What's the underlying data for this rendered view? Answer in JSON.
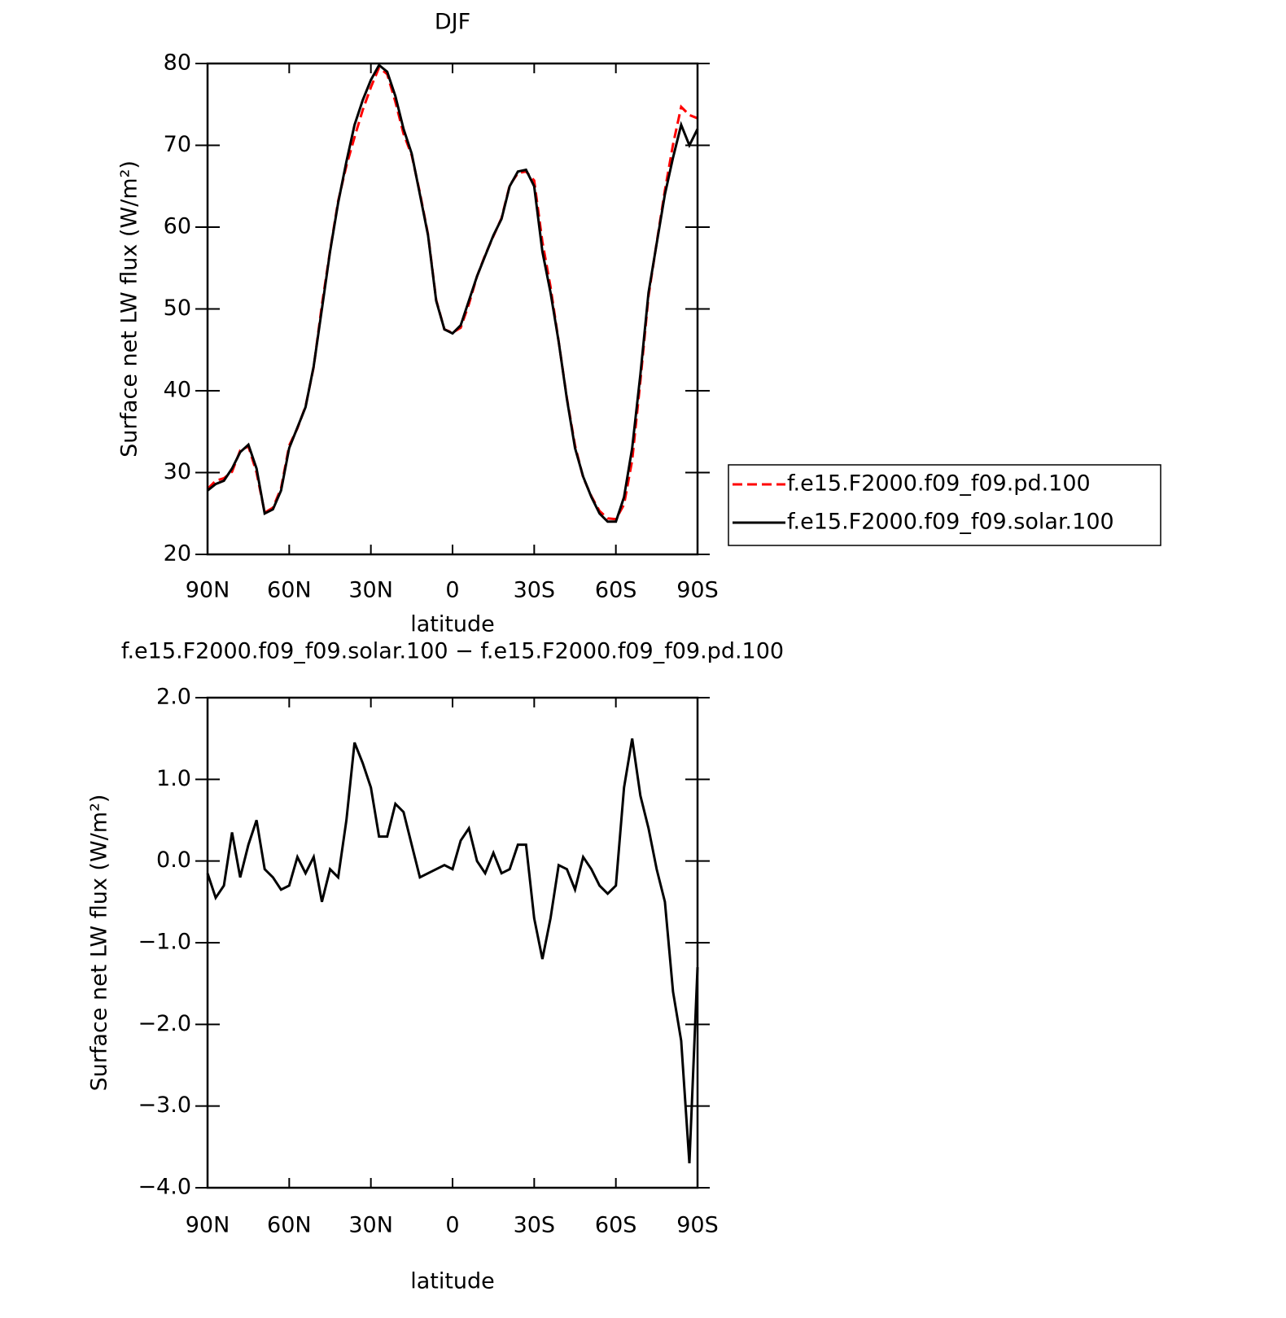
{
  "chart_data": [
    {
      "type": "line",
      "title": "DJF",
      "xlabel": "latitude",
      "ylabel": "Surface net LW flux (W/m²)",
      "x": [
        90,
        87,
        84,
        81,
        78,
        75,
        72,
        69,
        66,
        63,
        60,
        57,
        54,
        51,
        48,
        45,
        42,
        39,
        36,
        33,
        30,
        27,
        24,
        21,
        18,
        15,
        12,
        9,
        6,
        3,
        0,
        -3,
        -6,
        -9,
        -12,
        -15,
        -18,
        -21,
        -24,
        -27,
        -30,
        -33,
        -36,
        -39,
        -42,
        -45,
        -48,
        -51,
        -54,
        -57,
        -60,
        -63,
        -66,
        -69,
        -72,
        -75,
        -78,
        -81,
        -84,
        -87,
        -90
      ],
      "series": [
        {
          "name": "f.e15.F2000.f09_f09.pd.100",
          "color": "#ff0000",
          "dash": "dashed",
          "values": [
            28.0,
            29.0,
            29.3,
            30.1,
            32.7,
            33.2,
            30.0,
            25.1,
            25.7,
            28.1,
            33.3,
            35.4,
            38.1,
            42.9,
            50.5,
            57.1,
            63.2,
            67.5,
            71.0,
            74.3,
            77.1,
            79.5,
            78.7,
            75.3,
            71.4,
            68.8,
            64.2,
            59.1,
            51.1,
            47.5,
            47.1,
            47.7,
            50.6,
            54.0,
            56.6,
            58.9,
            61.1,
            65.1,
            66.6,
            66.8,
            65.7,
            58.2,
            52.7,
            46.0,
            39.1,
            33.3,
            29.4,
            27.1,
            25.3,
            24.4,
            24.3,
            26.1,
            31.5,
            41.2,
            51.6,
            58.1,
            64.5,
            70.1,
            74.7,
            73.7,
            73.3
          ]
        },
        {
          "name": "f.e15.F2000.f09_f09.solar.100",
          "color": "#000000",
          "dash": "solid",
          "values": [
            27.8,
            28.6,
            29.0,
            30.5,
            32.5,
            33.4,
            30.5,
            25.0,
            25.5,
            27.8,
            33.0,
            35.5,
            38.0,
            43.0,
            50.0,
            57.0,
            63.0,
            68.0,
            72.5,
            75.5,
            78.0,
            79.8,
            79.0,
            76.0,
            72.0,
            69.0,
            64.0,
            59.0,
            51.0,
            47.5,
            47.0,
            48.0,
            51.0,
            54.0,
            56.5,
            59.0,
            61.0,
            65.0,
            66.8,
            67.0,
            65.0,
            57.0,
            52.0,
            46.0,
            39.0,
            33.0,
            29.5,
            27.0,
            25.0,
            24.0,
            24.0,
            27.0,
            33.0,
            42.0,
            52.0,
            58.0,
            64.0,
            68.5,
            72.5,
            70.0,
            72.0
          ]
        }
      ],
      "xlim": [
        90,
        -90
      ],
      "xticks": [
        {
          "value": 90,
          "label": "90N"
        },
        {
          "value": 60,
          "label": "60N"
        },
        {
          "value": 30,
          "label": "30N"
        },
        0,
        {
          "value": -30,
          "label": "30S"
        },
        {
          "value": -60,
          "label": "60S"
        },
        {
          "value": -90,
          "label": "90S"
        }
      ],
      "ylim": [
        20,
        80
      ],
      "yticks": [
        20,
        30,
        40,
        50,
        60,
        70,
        80
      ],
      "legend": "right"
    },
    {
      "type": "line",
      "title": "f.e15.F2000.f09_f09.solar.100 − f.e15.F2000.f09_f09.pd.100",
      "xlabel": "latitude",
      "ylabel": "Surface net LW flux (W/m²)",
      "x": [
        90,
        87,
        84,
        81,
        78,
        75,
        72,
        69,
        66,
        63,
        60,
        57,
        54,
        51,
        48,
        45,
        42,
        39,
        36,
        33,
        30,
        27,
        24,
        21,
        18,
        15,
        12,
        9,
        6,
        3,
        0,
        -3,
        -6,
        -9,
        -12,
        -15,
        -18,
        -21,
        -24,
        -27,
        -30,
        -33,
        -36,
        -39,
        -42,
        -45,
        -48,
        -51,
        -54,
        -57,
        -60,
        -63,
        -66,
        -69,
        -72,
        -75,
        -78,
        -81,
        -84,
        -87,
        -90
      ],
      "series": [
        {
          "color": "#000000",
          "dash": "solid",
          "values": [
            -0.15,
            -0.45,
            -0.3,
            0.35,
            -0.2,
            0.2,
            0.5,
            -0.1,
            -0.2,
            -0.35,
            -0.3,
            0.05,
            -0.15,
            0.05,
            -0.5,
            -0.1,
            -0.2,
            0.5,
            1.45,
            1.2,
            0.9,
            0.3,
            0.3,
            0.7,
            0.6,
            0.2,
            -0.2,
            -0.15,
            -0.1,
            -0.05,
            -0.1,
            0.25,
            0.4,
            0.0,
            -0.15,
            0.1,
            -0.15,
            -0.1,
            0.2,
            0.2,
            -0.7,
            -1.2,
            -0.7,
            -0.05,
            -0.1,
            -0.35,
            0.05,
            -0.1,
            -0.3,
            -0.4,
            -0.3,
            0.9,
            1.5,
            0.8,
            0.4,
            -0.1,
            -0.5,
            -1.6,
            -2.2,
            -3.7,
            -1.3
          ]
        }
      ],
      "xlim": [
        90,
        -90
      ],
      "xticks": [
        {
          "value": 90,
          "label": "90N"
        },
        {
          "value": 60,
          "label": "60N"
        },
        {
          "value": 30,
          "label": "30N"
        },
        0,
        {
          "value": -30,
          "label": "30S"
        },
        {
          "value": -60,
          "label": "60S"
        },
        {
          "value": -90,
          "label": "90S"
        }
      ],
      "ylim": [
        -4,
        2
      ],
      "yticks": [
        {
          "value": -4,
          "label": "−4.0"
        },
        {
          "value": -3,
          "label": "−3.0"
        },
        {
          "value": -2,
          "label": "−2.0"
        },
        {
          "value": -1,
          "label": "−1.0"
        },
        {
          "value": 0,
          "label": "0.0"
        },
        {
          "value": 1,
          "label": "1.0"
        },
        {
          "value": 2,
          "label": "2.0"
        }
      ]
    }
  ]
}
